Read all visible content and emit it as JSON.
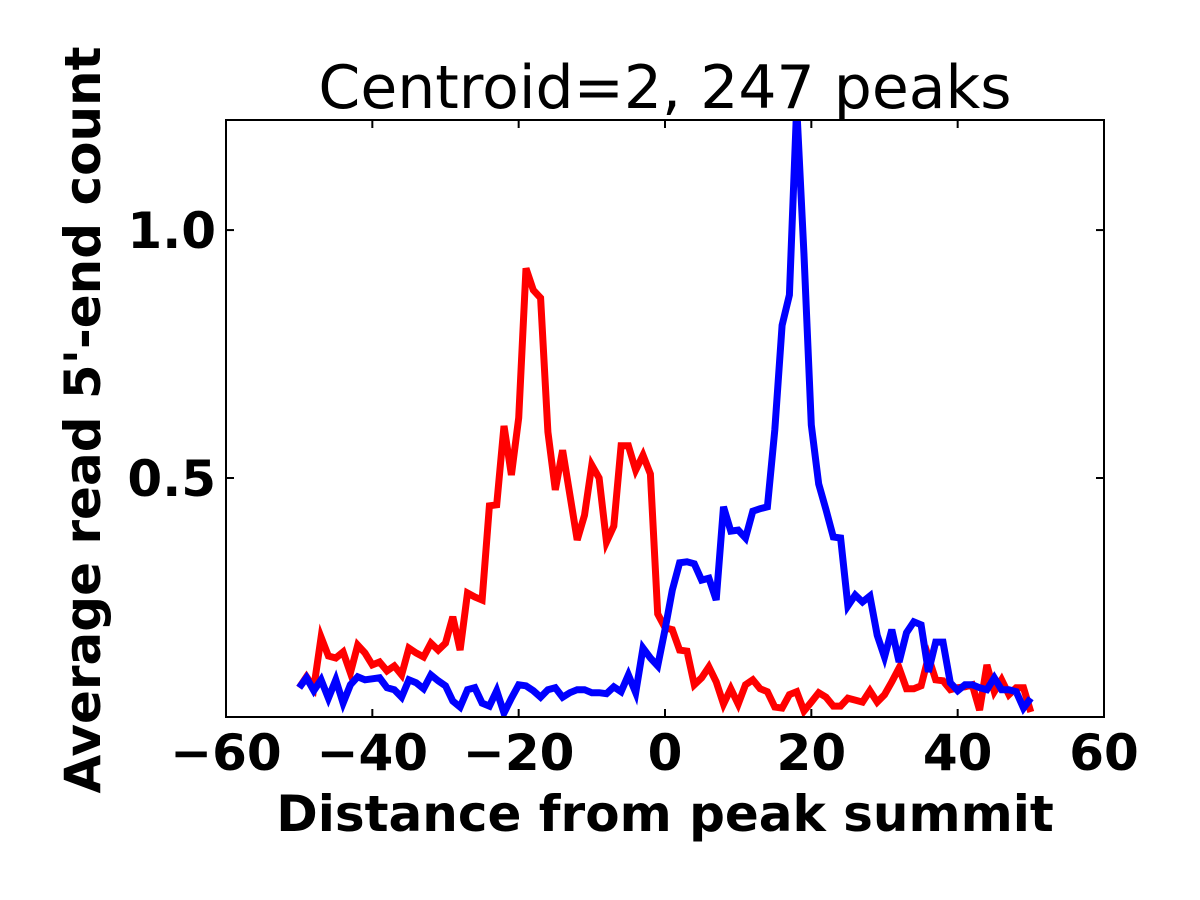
{
  "chart_data": {
    "type": "line",
    "title": "Centroid=2, 247 peaks",
    "xlabel": "Distance from peak summit",
    "ylabel": "Average read 5'-end count",
    "xlim": [
      -60,
      60
    ],
    "ylim": [
      0.018,
      1.222
    ],
    "xticks": [
      -60,
      -40,
      -20,
      0,
      20,
      40,
      60
    ],
    "xtick_labels": [
      "−60",
      "−40",
      "−20",
      "0",
      "20",
      "40",
      "60"
    ],
    "yticks": [
      0.5,
      1.0
    ],
    "ytick_labels": [
      "0.5",
      "1.0"
    ],
    "grid": false,
    "x_start": -50,
    "x_step": 1,
    "series": [
      {
        "color": "#ff0000",
        "values": [
          0.077,
          0.099,
          0.077,
          0.179,
          0.141,
          0.137,
          0.149,
          0.107,
          0.163,
          0.147,
          0.123,
          0.129,
          0.111,
          0.121,
          0.103,
          0.157,
          0.147,
          0.139,
          0.167,
          0.153,
          0.167,
          0.22,
          0.153,
          0.268,
          0.26,
          0.254,
          0.444,
          0.446,
          0.605,
          0.506,
          0.621,
          0.923,
          0.879,
          0.863,
          0.593,
          0.476,
          0.556,
          0.466,
          0.375,
          0.425,
          0.526,
          0.5,
          0.371,
          0.403,
          0.565,
          0.565,
          0.516,
          0.546,
          0.508,
          0.226,
          0.198,
          0.194,
          0.153,
          0.151,
          0.083,
          0.097,
          0.119,
          0.089,
          0.044,
          0.075,
          0.044,
          0.083,
          0.093,
          0.075,
          0.069,
          0.038,
          0.036,
          0.063,
          0.069,
          0.03,
          0.048,
          0.067,
          0.058,
          0.04,
          0.04,
          0.056,
          0.052,
          0.048,
          0.071,
          0.048,
          0.063,
          0.089,
          0.117,
          0.075,
          0.075,
          0.081,
          0.139,
          0.093,
          0.091,
          0.073,
          0.077,
          0.079,
          0.083,
          0.032,
          0.123,
          0.069,
          0.093,
          0.063,
          0.077,
          0.077,
          0.028
        ]
      },
      {
        "color": "#0000ff",
        "values": [
          0.077,
          0.097,
          0.071,
          0.093,
          0.056,
          0.093,
          0.046,
          0.083,
          0.099,
          0.093,
          0.095,
          0.097,
          0.077,
          0.073,
          0.058,
          0.093,
          0.087,
          0.075,
          0.103,
          0.091,
          0.081,
          0.05,
          0.038,
          0.073,
          0.077,
          0.046,
          0.04,
          0.071,
          0.026,
          0.056,
          0.083,
          0.081,
          0.071,
          0.058,
          0.073,
          0.077,
          0.058,
          0.067,
          0.073,
          0.073,
          0.067,
          0.067,
          0.065,
          0.079,
          0.069,
          0.103,
          0.067,
          0.157,
          0.137,
          0.121,
          0.194,
          0.274,
          0.329,
          0.331,
          0.327,
          0.294,
          0.298,
          0.254,
          0.442,
          0.393,
          0.395,
          0.379,
          0.433,
          0.438,
          0.442,
          0.597,
          0.808,
          0.869,
          1.25,
          0.95,
          0.607,
          0.488,
          0.436,
          0.381,
          0.379,
          0.242,
          0.264,
          0.25,
          0.262,
          0.183,
          0.139,
          0.194,
          0.129,
          0.188,
          0.21,
          0.204,
          0.109,
          0.169,
          0.169,
          0.087,
          0.071,
          0.083,
          0.083,
          0.077,
          0.073,
          0.097,
          0.073,
          0.073,
          0.069,
          0.036,
          0.056
        ]
      }
    ]
  }
}
